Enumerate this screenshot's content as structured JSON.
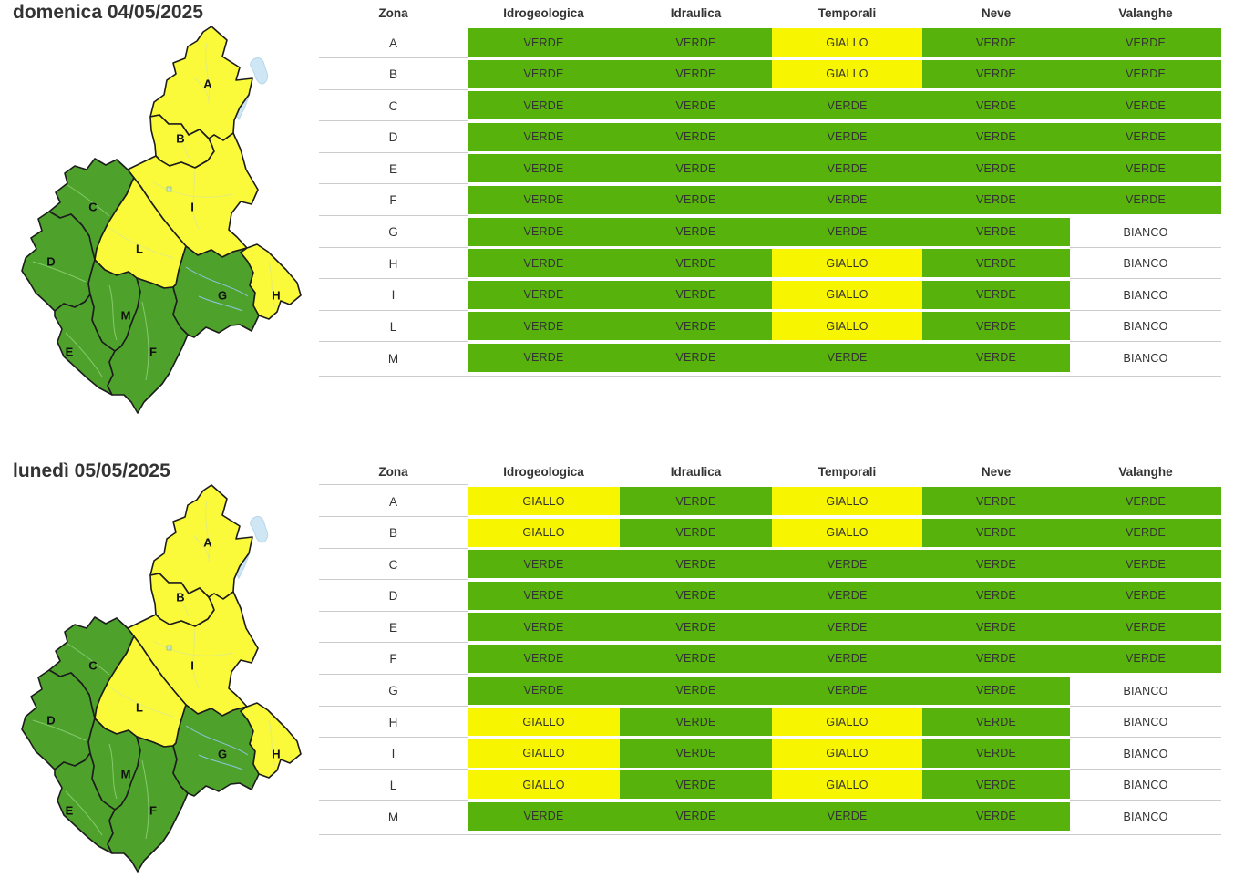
{
  "colors": {
    "verde": "#57b20b",
    "giallo": "#f7f500",
    "bianco": "#ffffff",
    "map_verde": "#4ea22c",
    "map_giallo": "#fafa3a",
    "lake_blue": "#cfe7f5",
    "border_black": "#1c1c1c",
    "text_dark": "#333333",
    "separator_gray": "#cccccc"
  },
  "columns": [
    "Zona",
    "Idrogeologica",
    "Idraulica",
    "Temporali",
    "Neve",
    "Valanghe"
  ],
  "sections": [
    {
      "title": "domenica 04/05/2025",
      "map_zones": {
        "A": "giallo",
        "B": "giallo",
        "C": "verde",
        "D": "verde",
        "E": "verde",
        "F": "verde",
        "G": "verde",
        "H": "giallo",
        "I": "giallo",
        "L": "giallo",
        "M": "verde"
      },
      "rows": [
        {
          "zona": "A",
          "values": [
            "VERDE",
            "VERDE",
            "GIALLO",
            "VERDE",
            "VERDE"
          ]
        },
        {
          "zona": "B",
          "values": [
            "VERDE",
            "VERDE",
            "GIALLO",
            "VERDE",
            "VERDE"
          ]
        },
        {
          "zona": "C",
          "values": [
            "VERDE",
            "VERDE",
            "VERDE",
            "VERDE",
            "VERDE"
          ]
        },
        {
          "zona": "D",
          "values": [
            "VERDE",
            "VERDE",
            "VERDE",
            "VERDE",
            "VERDE"
          ]
        },
        {
          "zona": "E",
          "values": [
            "VERDE",
            "VERDE",
            "VERDE",
            "VERDE",
            "VERDE"
          ]
        },
        {
          "zona": "F",
          "values": [
            "VERDE",
            "VERDE",
            "VERDE",
            "VERDE",
            "VERDE"
          ]
        },
        {
          "zona": "G",
          "values": [
            "VERDE",
            "VERDE",
            "VERDE",
            "VERDE",
            "BIANCO"
          ]
        },
        {
          "zona": "H",
          "values": [
            "VERDE",
            "VERDE",
            "GIALLO",
            "VERDE",
            "BIANCO"
          ]
        },
        {
          "zona": "I",
          "values": [
            "VERDE",
            "VERDE",
            "GIALLO",
            "VERDE",
            "BIANCO"
          ]
        },
        {
          "zona": "L",
          "values": [
            "VERDE",
            "VERDE",
            "GIALLO",
            "VERDE",
            "BIANCO"
          ]
        },
        {
          "zona": "M",
          "values": [
            "VERDE",
            "VERDE",
            "VERDE",
            "VERDE",
            "BIANCO"
          ]
        }
      ]
    },
    {
      "title": "lunedì 05/05/2025",
      "map_zones": {
        "A": "giallo",
        "B": "giallo",
        "C": "verde",
        "D": "verde",
        "E": "verde",
        "F": "verde",
        "G": "verde",
        "H": "giallo",
        "I": "giallo",
        "L": "giallo",
        "M": "verde"
      },
      "rows": [
        {
          "zona": "A",
          "values": [
            "GIALLO",
            "VERDE",
            "GIALLO",
            "VERDE",
            "VERDE"
          ]
        },
        {
          "zona": "B",
          "values": [
            "GIALLO",
            "VERDE",
            "GIALLO",
            "VERDE",
            "VERDE"
          ]
        },
        {
          "zona": "C",
          "values": [
            "VERDE",
            "VERDE",
            "VERDE",
            "VERDE",
            "VERDE"
          ]
        },
        {
          "zona": "D",
          "values": [
            "VERDE",
            "VERDE",
            "VERDE",
            "VERDE",
            "VERDE"
          ]
        },
        {
          "zona": "E",
          "values": [
            "VERDE",
            "VERDE",
            "VERDE",
            "VERDE",
            "VERDE"
          ]
        },
        {
          "zona": "F",
          "values": [
            "VERDE",
            "VERDE",
            "VERDE",
            "VERDE",
            "VERDE"
          ]
        },
        {
          "zona": "G",
          "values": [
            "VERDE",
            "VERDE",
            "VERDE",
            "VERDE",
            "BIANCO"
          ]
        },
        {
          "zona": "H",
          "values": [
            "GIALLO",
            "VERDE",
            "GIALLO",
            "VERDE",
            "BIANCO"
          ]
        },
        {
          "zona": "I",
          "values": [
            "GIALLO",
            "VERDE",
            "GIALLO",
            "VERDE",
            "BIANCO"
          ]
        },
        {
          "zona": "L",
          "values": [
            "GIALLO",
            "VERDE",
            "GIALLO",
            "VERDE",
            "BIANCO"
          ]
        },
        {
          "zona": "M",
          "values": [
            "VERDE",
            "VERDE",
            "VERDE",
            "VERDE",
            "BIANCO"
          ]
        }
      ]
    }
  ]
}
